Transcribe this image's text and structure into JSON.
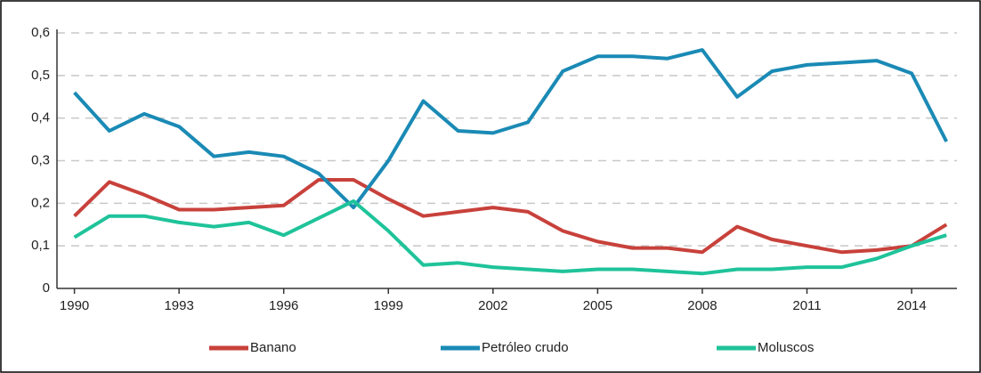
{
  "chart_data": {
    "type": "line",
    "x": [
      1990,
      1991,
      1992,
      1993,
      1994,
      1995,
      1996,
      1997,
      1998,
      1999,
      2000,
      2001,
      2002,
      2003,
      2004,
      2005,
      2006,
      2007,
      2008,
      2009,
      2010,
      2011,
      2012,
      2013,
      2014,
      2015
    ],
    "series": [
      {
        "name": "Banano",
        "color": "#c8413b",
        "values": [
          0.17,
          0.25,
          0.22,
          0.185,
          0.185,
          0.19,
          0.195,
          0.255,
          0.255,
          0.21,
          0.17,
          0.18,
          0.19,
          0.18,
          0.135,
          0.11,
          0.095,
          0.095,
          0.085,
          0.145,
          0.115,
          0.1,
          0.085,
          0.09,
          0.1,
          0.15
        ]
      },
      {
        "name": "Petróleo crudo",
        "color": "#1a8ab5",
        "values": [
          0.46,
          0.37,
          0.41,
          0.38,
          0.31,
          0.32,
          0.31,
          0.27,
          0.19,
          0.3,
          0.44,
          0.37,
          0.365,
          0.39,
          0.51,
          0.545,
          0.545,
          0.54,
          0.56,
          0.45,
          0.51,
          0.525,
          0.53,
          0.535,
          0.505,
          0.345
        ]
      },
      {
        "name": "Moluscos",
        "color": "#1fc39a",
        "values": [
          0.12,
          0.17,
          0.17,
          0.155,
          0.145,
          0.155,
          0.125,
          0.165,
          0.205,
          0.135,
          0.055,
          0.06,
          0.05,
          0.045,
          0.04,
          0.045,
          0.045,
          0.04,
          0.035,
          0.045,
          0.045,
          0.05,
          0.05,
          0.07,
          0.1,
          0.125
        ]
      }
    ],
    "xlim": [
      1989.5,
      2015.3
    ],
    "xticks": [
      1990,
      1993,
      1996,
      1999,
      2002,
      2005,
      2008,
      2011,
      2014
    ],
    "ylim": [
      0,
      0.6
    ],
    "yticks": [
      0,
      {
        "value": 0.1,
        "label": "0,1"
      },
      {
        "value": 0.2,
        "label": "0,2"
      },
      {
        "value": 0.3,
        "label": "0,3"
      },
      {
        "value": 0.4,
        "label": "0,4"
      },
      {
        "value": 0.5,
        "label": "0,5"
      },
      {
        "value": 0.6,
        "label": "0,6"
      }
    ],
    "grid": true,
    "legend": "bottom"
  }
}
